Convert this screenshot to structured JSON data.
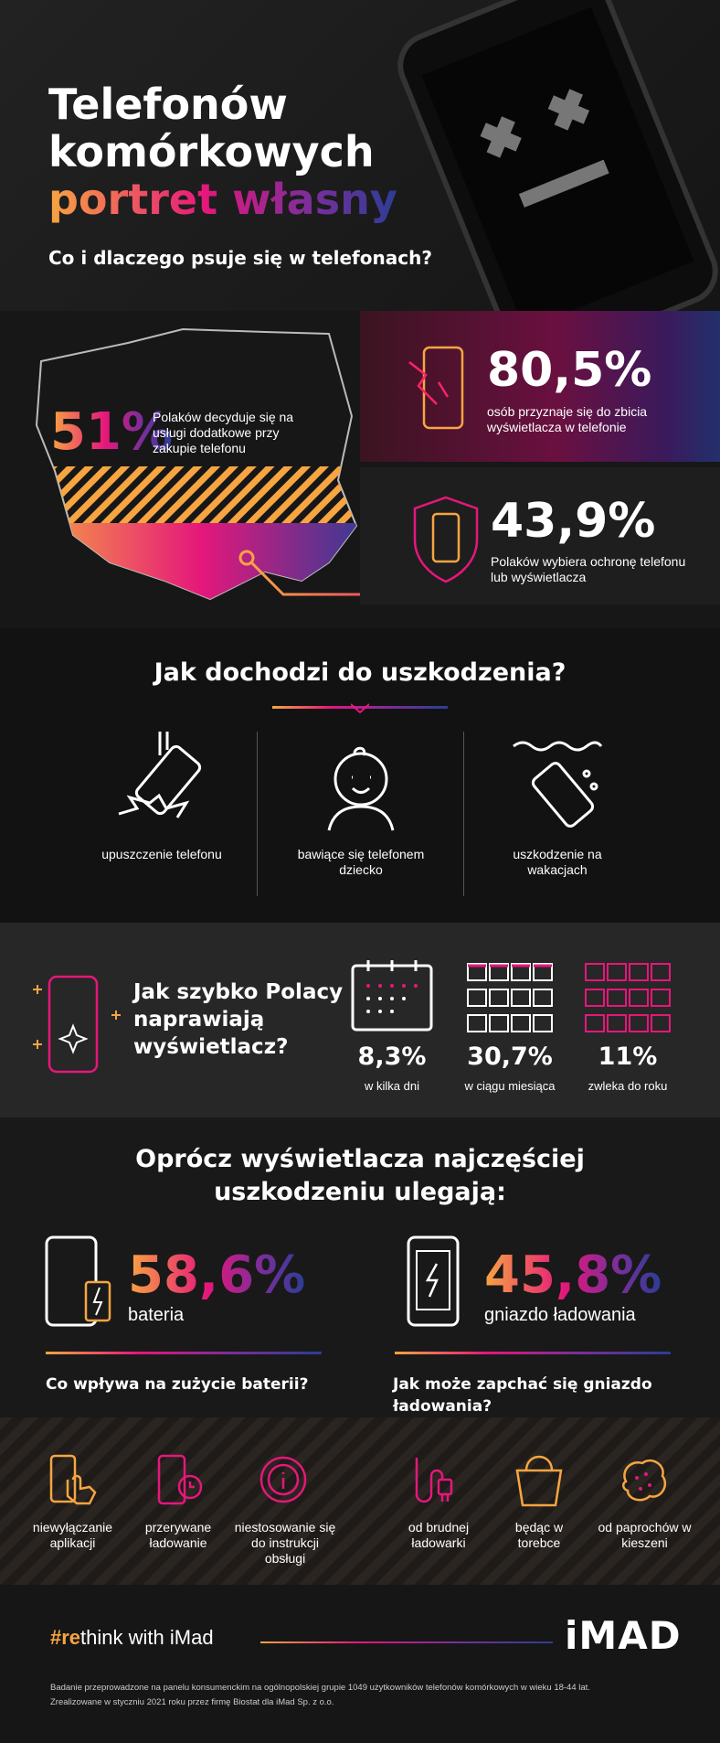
{
  "header": {
    "title_lines": [
      "Telefonów",
      "komórkowych",
      "portret własny"
    ],
    "subtitle": "Co i dlaczego psuje się w telefonach?"
  },
  "stats": {
    "poland": {
      "value": "51%",
      "text": "Polaków decyduje się na usługi dodatkowe przy zakupie telefonu"
    },
    "display": {
      "value": "80,5%",
      "text": "osób przyznaje się do zbicia wyświetlacza w telefonie"
    },
    "protection": {
      "value": "43,9%",
      "text": "Polaków wybiera ochronę telefonu lub wyświetlacza"
    }
  },
  "damage": {
    "title": "Jak dochodzi do uszkodzenia?",
    "causes": [
      "upuszczenie telefonu",
      "bawiące się telefonem dziecko",
      "uszkodzenie na wakacjach"
    ]
  },
  "repair": {
    "title": "Jak szybko Polacy naprawiają wyświetlacz?",
    "options": [
      {
        "value": "8,3%",
        "label": "w kilka dni"
      },
      {
        "value": "30,7%",
        "label": "w ciągu miesiąca"
      },
      {
        "value": "11%",
        "label": "zwleka do roku"
      }
    ]
  },
  "other": {
    "title": "Oprócz wyświetlacza najczęściej uszkodzeniu ulegają:",
    "items": [
      {
        "value": "58,6%",
        "label": "bateria",
        "question": "Co wpływa na zużycie baterii?"
      },
      {
        "value": "45,8%",
        "label": "gniazdo ładowania",
        "question": "Jak może zapchać się gniazdo ładowania?"
      }
    ],
    "battery_causes": [
      "niewyłączanie aplikacji",
      "przerywane ładowanie",
      "niestosowanie się do instrukcji obsługi"
    ],
    "port_causes": [
      "od brudnej ładowarki",
      "będąc w torebce",
      "od paprochów w kieszeni"
    ]
  },
  "footer": {
    "hashtag_prefix": "#re",
    "hashtag_rest": "think with iMad",
    "logo": "iMAD",
    "notes": [
      "Badanie przeprowadzone na panelu konsumenckim na ogólnopolskiej grupie 1049 użytkowników telefonów komórkowych w wieku 18-44 lat.",
      "Zrealizowane w styczniu 2021 roku przez firmę Biostat dla iMad Sp. z o.o."
    ]
  }
}
